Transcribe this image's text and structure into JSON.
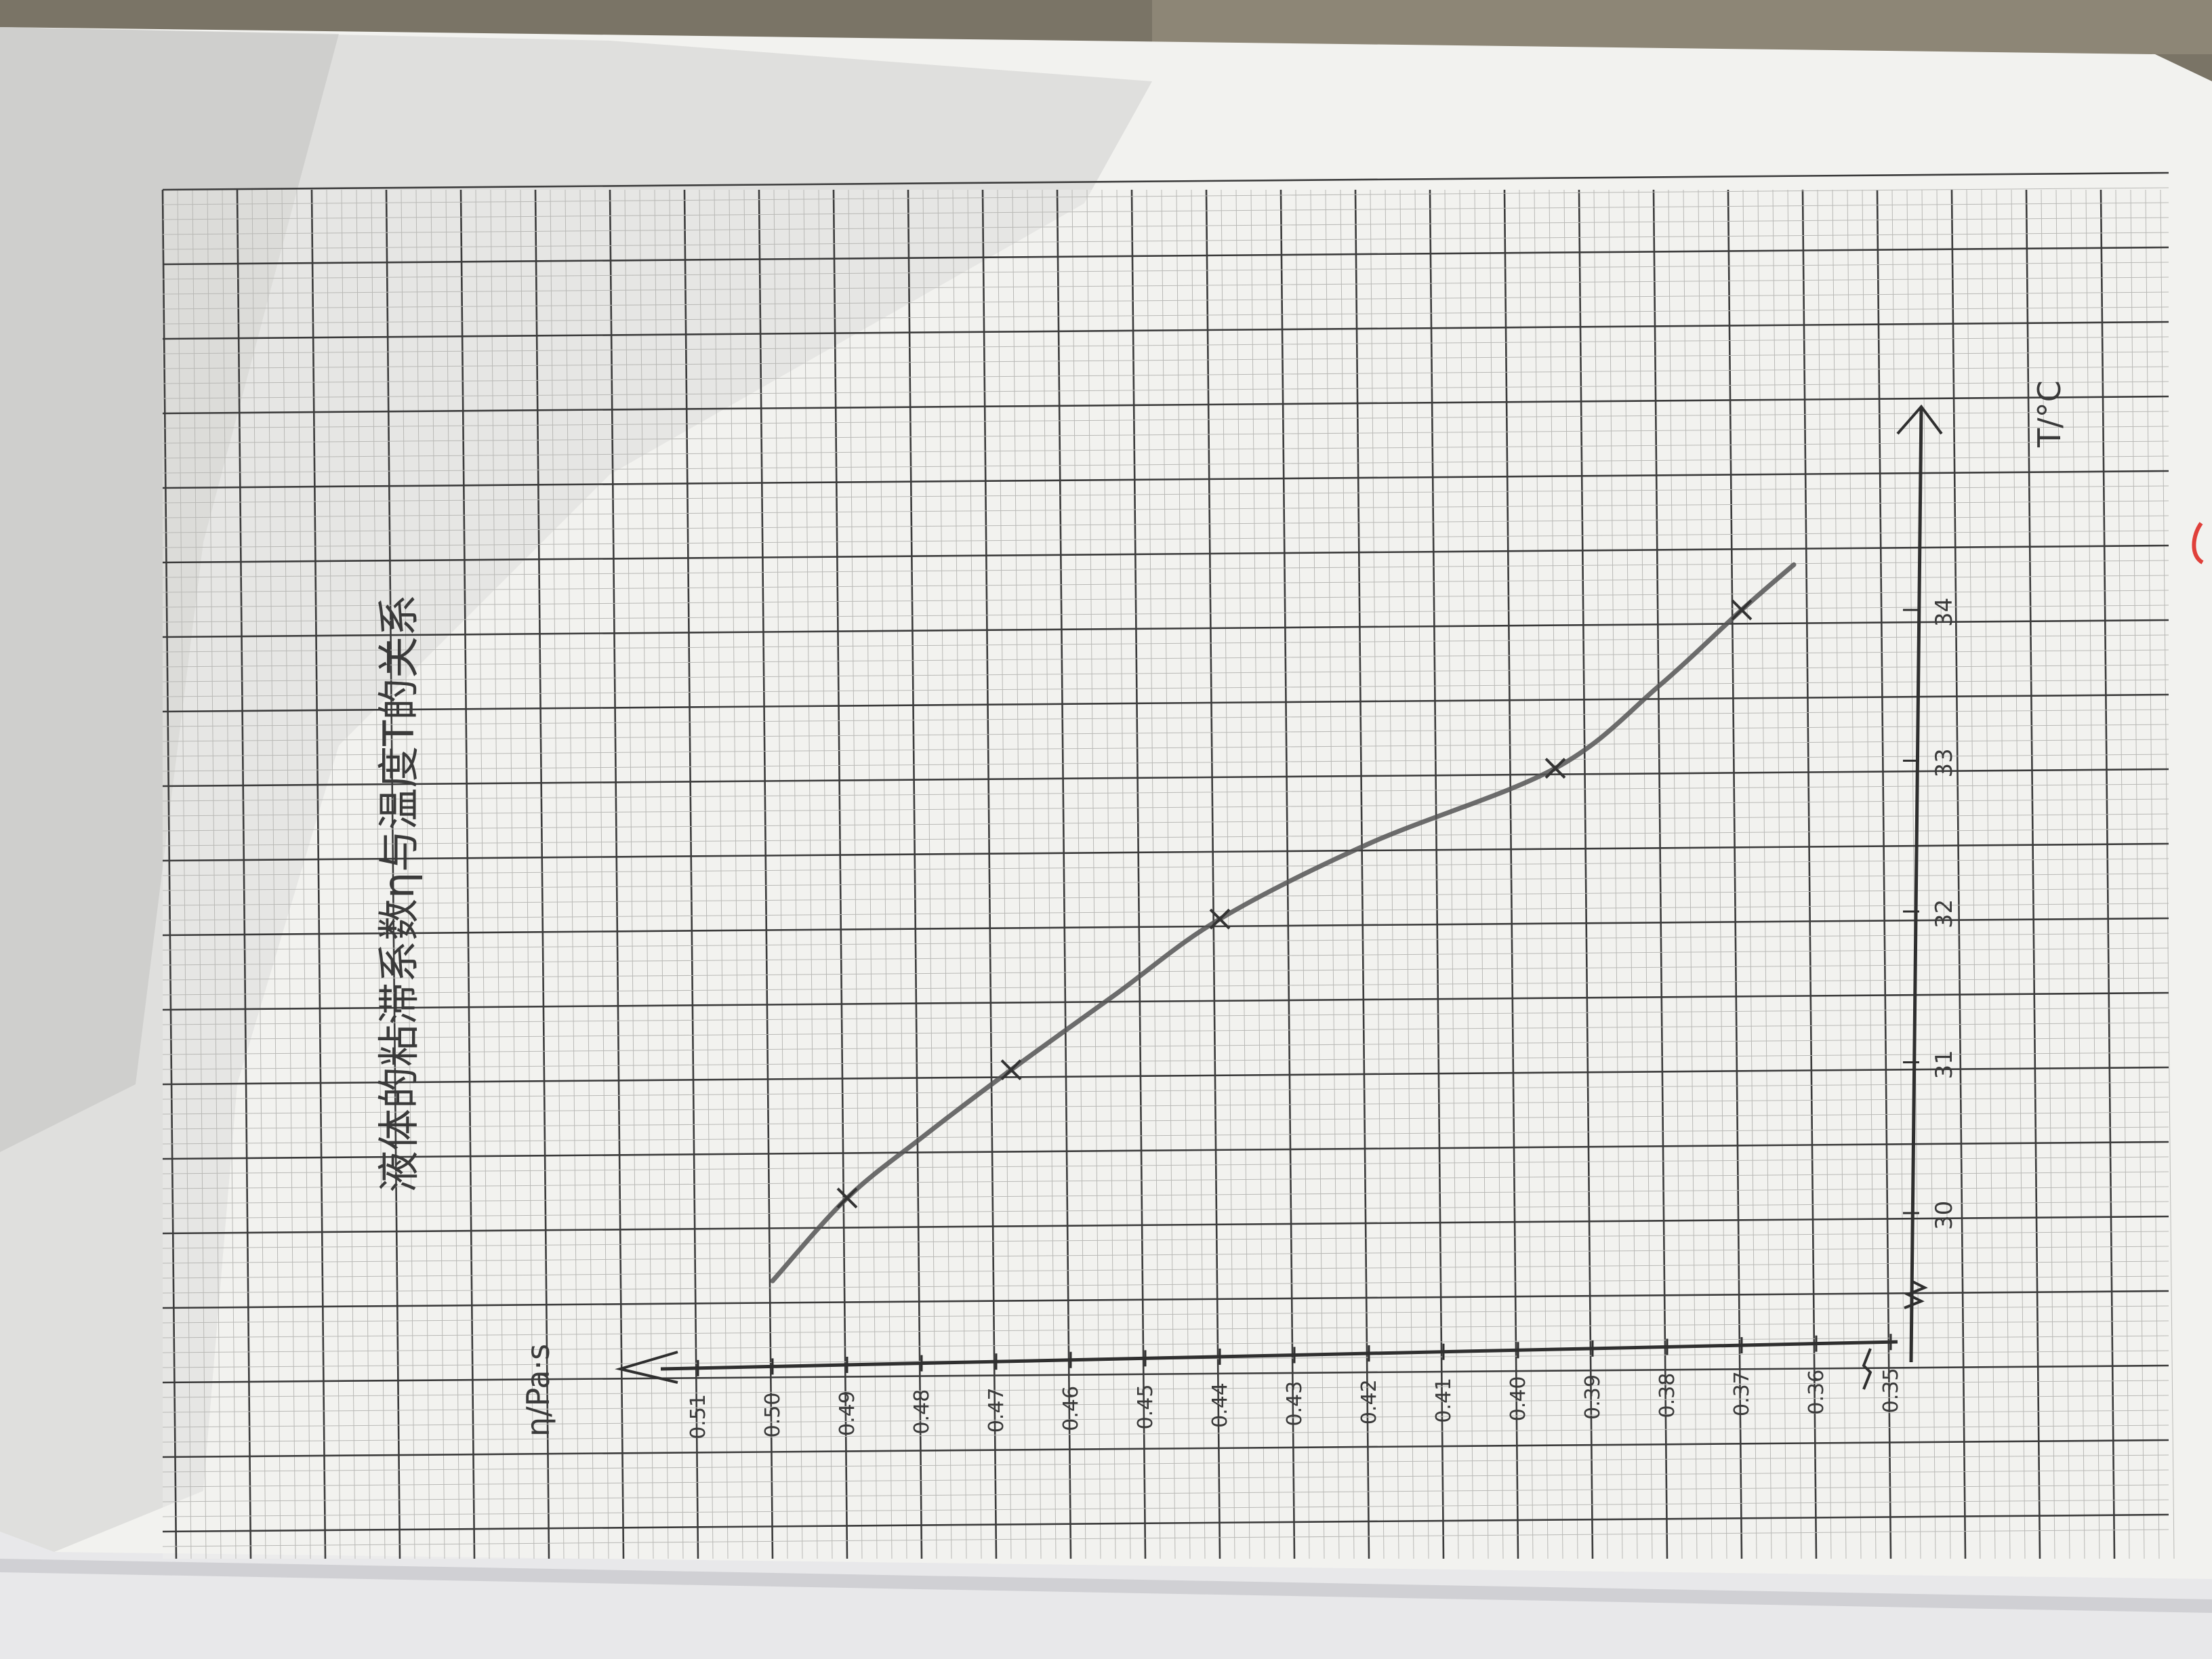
{
  "chart_data": {
    "type": "line",
    "title": "液体的粘滞系数η与温度T的关系",
    "xlabel": "T/°C",
    "ylabel": "η/Pa·s",
    "x_ticks": [
      "30",
      "31",
      "32",
      "33",
      "34"
    ],
    "y_ticks": [
      "0.51",
      "0.50",
      "0.49",
      "0.48",
      "0.47",
      "0.46",
      "0.45",
      "0.44",
      "0.43",
      "0.42",
      "0.41",
      "0.40",
      "0.39",
      "0.38",
      "0.37",
      "0.36",
      "0.35"
    ],
    "xlim": [
      29.3,
      35.2
    ],
    "ylim": [
      0.34,
      0.515
    ],
    "grid": true,
    "points": [
      {
        "x": 30.1,
        "y": 0.49
      },
      {
        "x": 30.95,
        "y": 0.468
      },
      {
        "x": 31.95,
        "y": 0.44
      },
      {
        "x": 32.95,
        "y": 0.395
      },
      {
        "x": 34.0,
        "y": 0.37
      }
    ],
    "curve": [
      {
        "x": 29.55,
        "y": 0.5
      },
      {
        "x": 30.1,
        "y": 0.49
      },
      {
        "x": 30.5,
        "y": 0.48
      },
      {
        "x": 30.95,
        "y": 0.468
      },
      {
        "x": 31.45,
        "y": 0.454
      },
      {
        "x": 31.95,
        "y": 0.44
      },
      {
        "x": 32.45,
        "y": 0.42
      },
      {
        "x": 32.95,
        "y": 0.395
      },
      {
        "x": 33.5,
        "y": 0.381
      },
      {
        "x": 34.0,
        "y": 0.37
      },
      {
        "x": 34.3,
        "y": 0.363
      }
    ],
    "colors": {
      "paper": "#f4f4f1",
      "grid_major": "#3c3c3c",
      "grid_minor": "#b9b9b6",
      "pencil": "#555555"
    }
  }
}
